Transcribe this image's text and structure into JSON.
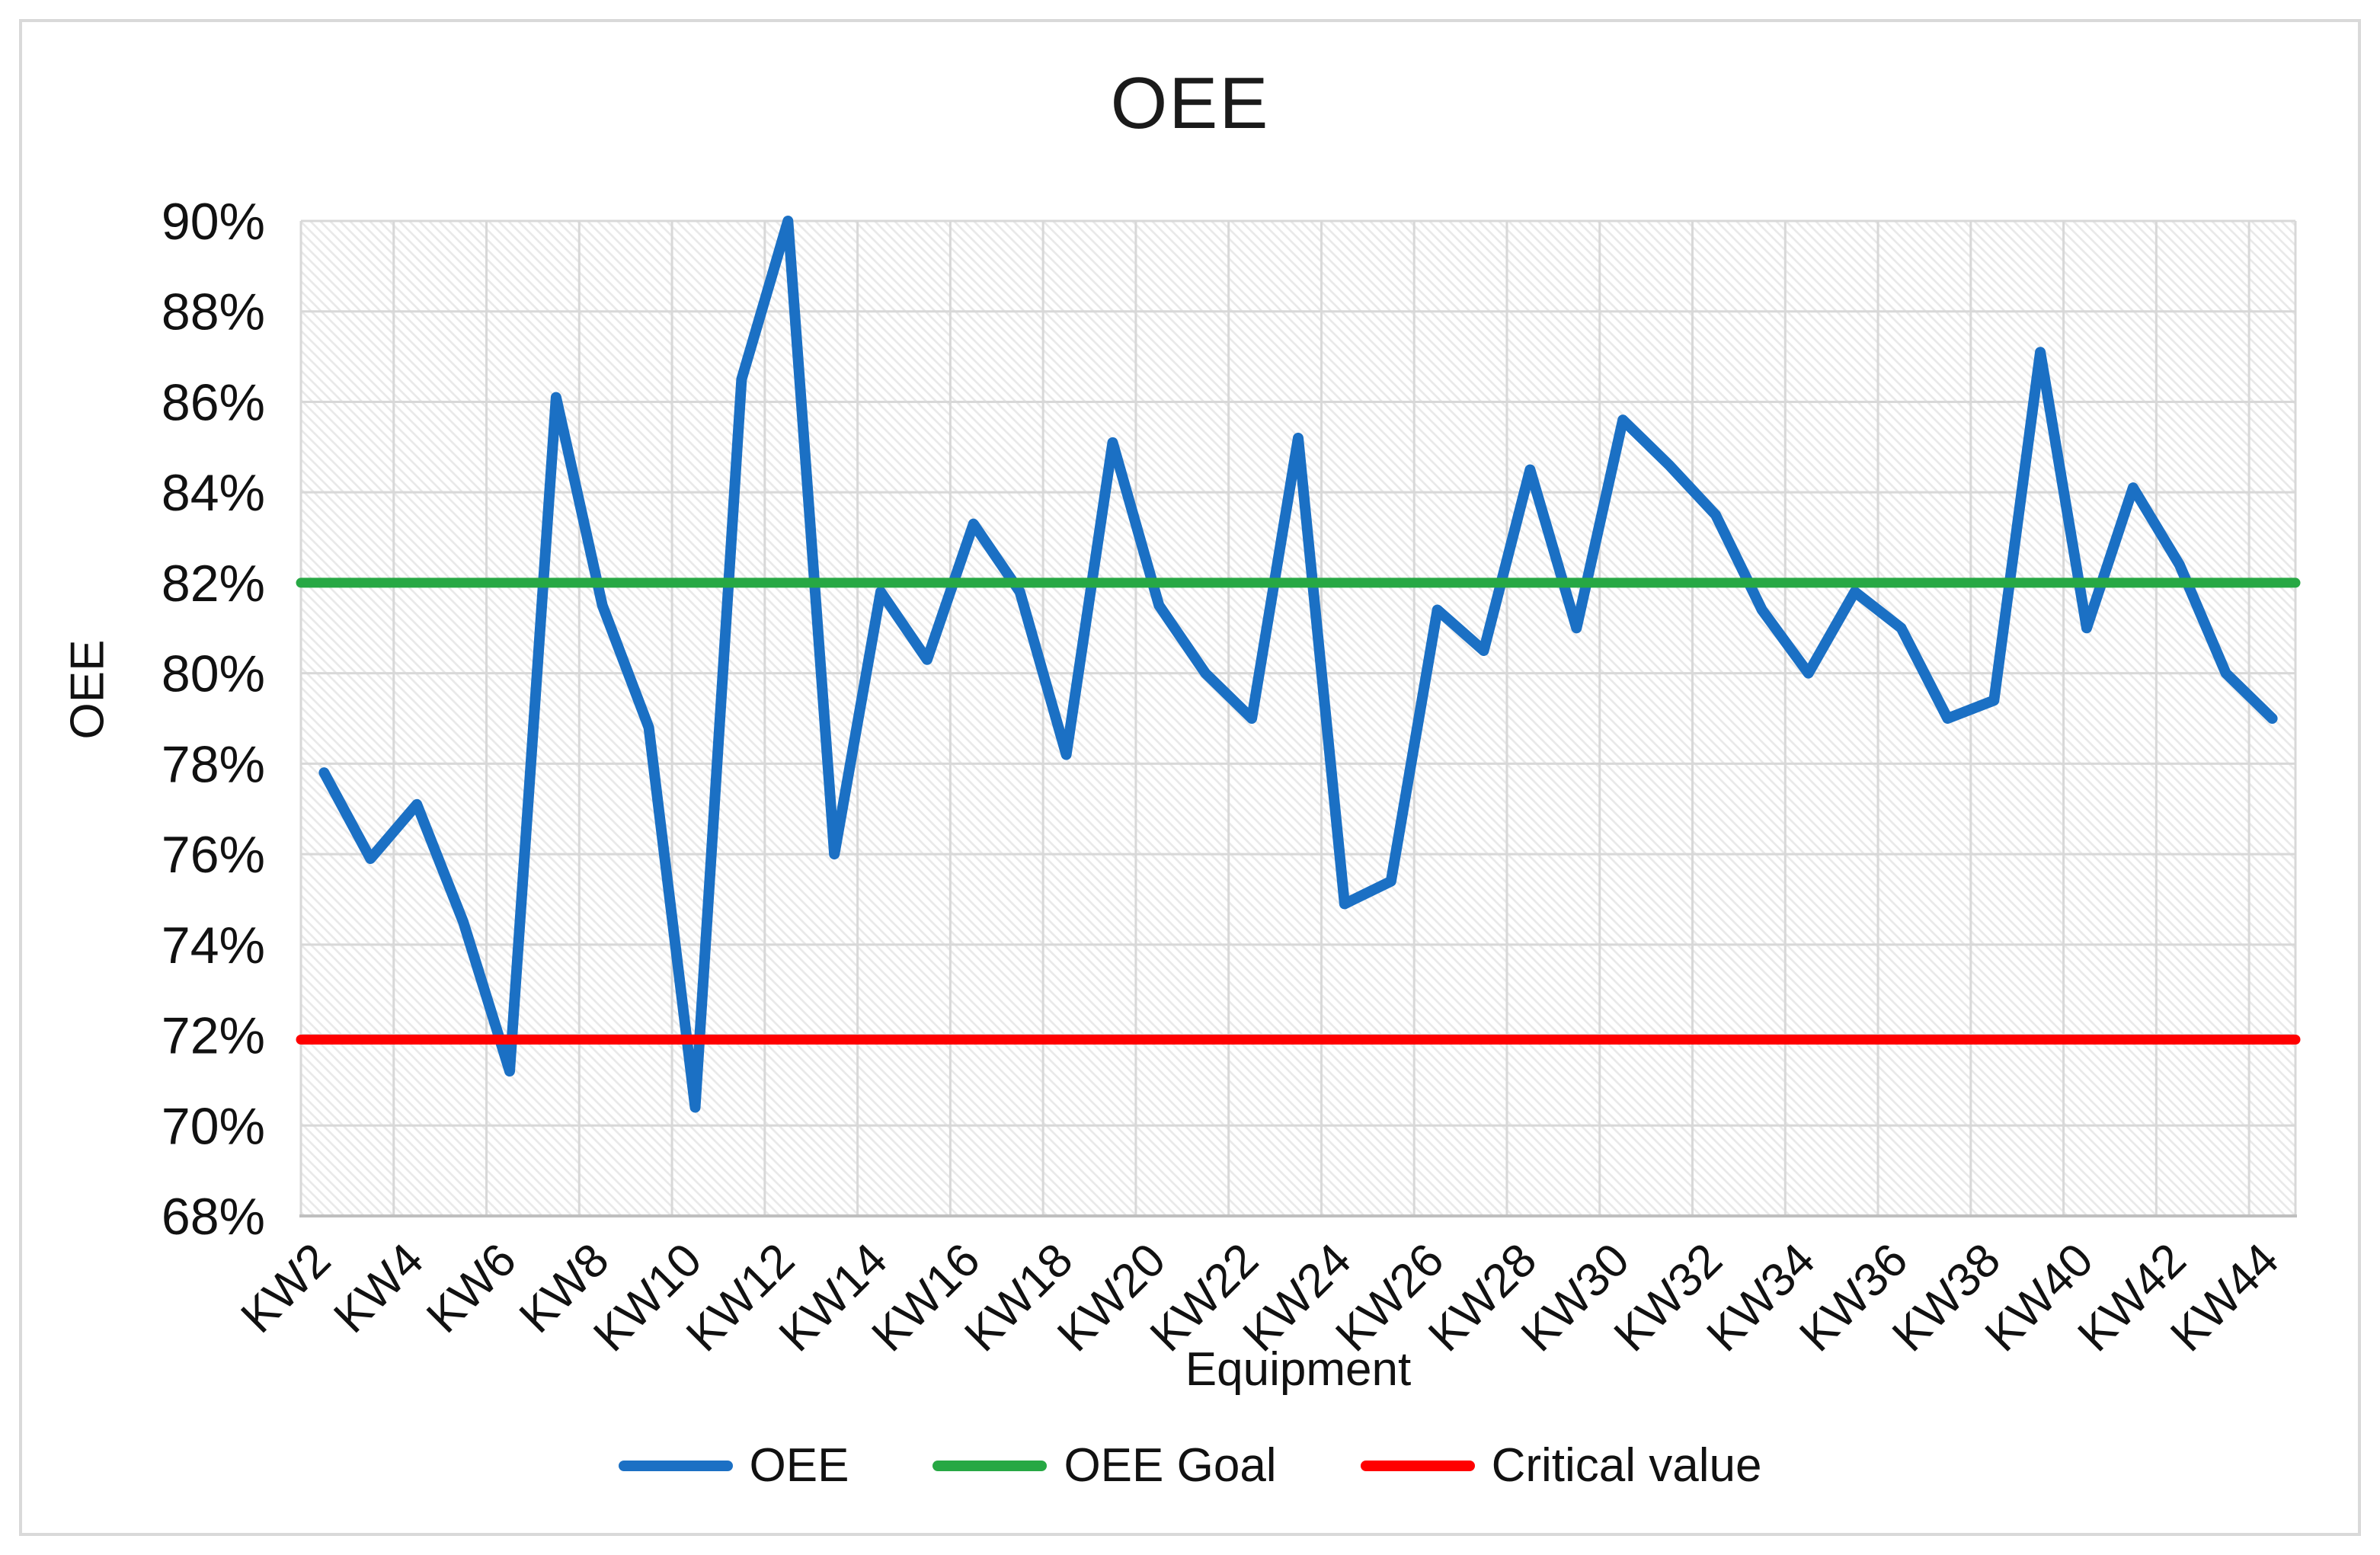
{
  "chart_data": {
    "type": "line",
    "title": "OEE",
    "x_axis_title": "Equipment",
    "y_axis_title": "OEE",
    "categories": [
      "KW2",
      "KW3",
      "KW4",
      "KW5",
      "KW6",
      "KW7",
      "KW8",
      "KW9",
      "KW10",
      "KW11",
      "KW12",
      "KW13",
      "KW14",
      "KW15",
      "KW16",
      "KW17",
      "KW18",
      "KW19",
      "KW20",
      "KW21",
      "KW22",
      "KW23",
      "KW24",
      "KW25",
      "KW26",
      "KW27",
      "KW28",
      "KW29",
      "KW30",
      "KW31",
      "KW32",
      "KW33",
      "KW34",
      "KW35",
      "KW36",
      "KW37",
      "KW38",
      "KW39",
      "KW40",
      "KW41",
      "KW42",
      "KW43",
      "KW44"
    ],
    "x_tick_interval": 2,
    "series": [
      {
        "name": "OEE",
        "type": "line",
        "color": "#1B70C4",
        "values": [
          77.8,
          75.9,
          77.1,
          74.5,
          71.2,
          86.1,
          81.5,
          78.8,
          70.4,
          86.5,
          90.0,
          76.0,
          81.8,
          80.3,
          83.3,
          81.8,
          78.2,
          85.1,
          81.5,
          80.0,
          79.0,
          85.2,
          74.9,
          75.4,
          81.4,
          80.5,
          84.5,
          81.0,
          85.6,
          84.6,
          83.5,
          81.4,
          80.0,
          81.8,
          81.0,
          79.0,
          79.4,
          87.1,
          81.0,
          84.1,
          82.4,
          80.0,
          79.0
        ]
      },
      {
        "name": "OEE Goal",
        "type": "constant-line",
        "color": "#27A844",
        "value": 82.0
      },
      {
        "name": "Critical value",
        "type": "constant-line",
        "color": "#FF0000",
        "value": 71.9
      }
    ],
    "ylim": [
      68,
      90
    ],
    "y_tick_step": 2,
    "y_tick_labels": [
      "68%",
      "70%",
      "72%",
      "74%",
      "76%",
      "78%",
      "80%",
      "82%",
      "84%",
      "86%",
      "88%",
      "90%"
    ],
    "grid": true,
    "plot_background": "diagonal-hatch",
    "gridline_color": "#d8d8d8",
    "axis_line_color": "#bfbfbf",
    "legend_position": "bottom"
  }
}
